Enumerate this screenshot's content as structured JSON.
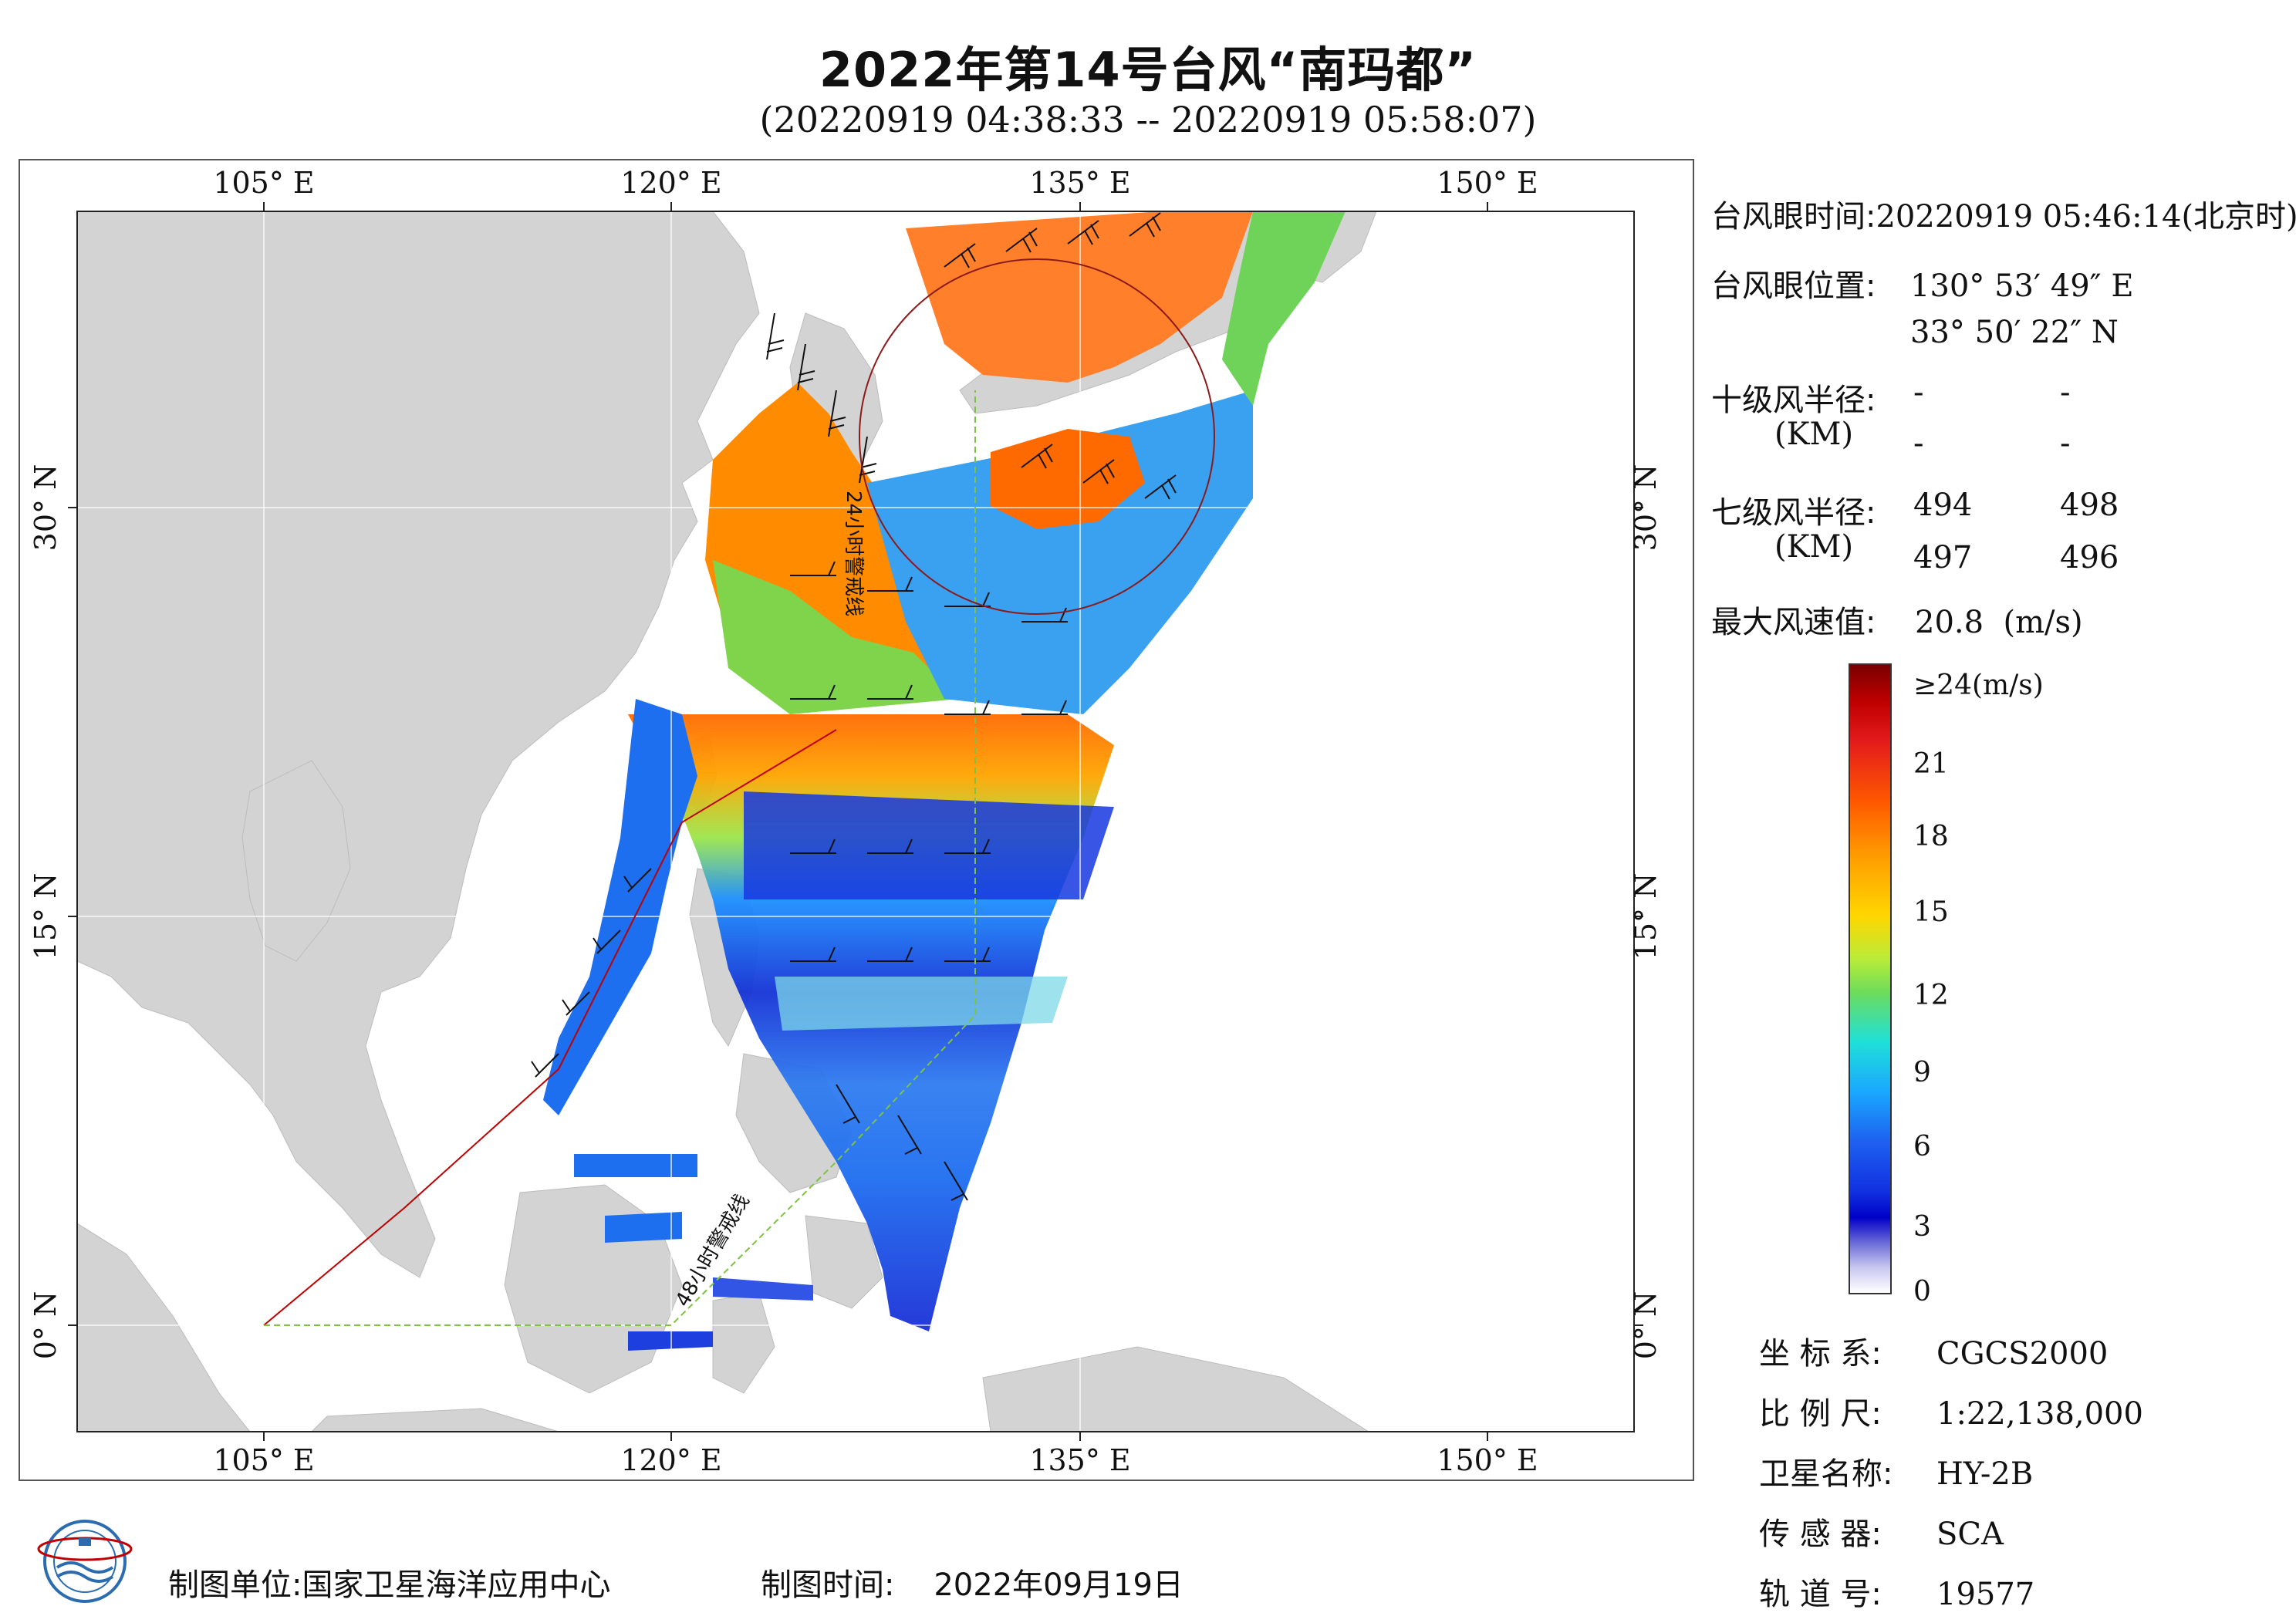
{
  "header": {
    "title": "2022年第14号台风“南玛都”",
    "subtitle": "(20220919 04:38:33 -- 20220919 05:58:07)"
  },
  "map": {
    "lon_labels": [
      "105° E",
      "120° E",
      "135° E",
      "150° E"
    ],
    "lat_labels": [
      "30° N",
      "15° N",
      "0° N"
    ],
    "warning_24h": "24小时警戒线",
    "warning_48h": "48小时警戒线",
    "colors": {
      "land": "#d3d3d3",
      "sea": "#ffffff",
      "warning_24h": "#c00000",
      "warning_48h": "#7dc242",
      "wind_barb": "#111111"
    }
  },
  "info": {
    "eye_time_label": "台风眼时间:",
    "eye_time_value": "20220919 05:46:14(北京时)",
    "eye_pos_label": "台风眼位置:",
    "eye_lon": "130° 53′ 49″ E",
    "eye_lat": "33° 50′ 22″ N",
    "r10_label": "十级风半径:",
    "r10_unit": "(KM)",
    "r10_values": [
      "-",
      "-",
      "-",
      "-"
    ],
    "r7_label": "七级风半径:",
    "r7_unit": "(KM)",
    "r7_values": [
      "494",
      "498",
      "497",
      "496"
    ],
    "max_wind_label": "最大风速值:",
    "max_wind_value": "20.8",
    "max_wind_unit": "(m/s)"
  },
  "legend": {
    "ticks": [
      "≥24(m/s)",
      "21",
      "18",
      "15",
      "12",
      "9",
      "6",
      "3",
      "0"
    ],
    "colors": [
      "#7a0000",
      "#e31a1c",
      "#ff7f00",
      "#ffd700",
      "#9be64b",
      "#00e5ee",
      "#1e90ff",
      "#0000cd",
      "#ffffff"
    ]
  },
  "meta": {
    "crs_label": "坐 标 系:",
    "crs_value": "CGCS2000",
    "scale_label": "比 例 尺:",
    "scale_value": "1:22,138,000",
    "sat_label": "卫星名称:",
    "sat_value": "HY-2B",
    "sensor_label": "传 感 器:",
    "sensor_value": "SCA",
    "orbit_label": "轨 道 号:",
    "orbit_value": "19577"
  },
  "footer": {
    "org": "制图单位:国家卫星海洋应用中心",
    "date_label": "制图时间:",
    "date_value": "2022年09月19日"
  }
}
